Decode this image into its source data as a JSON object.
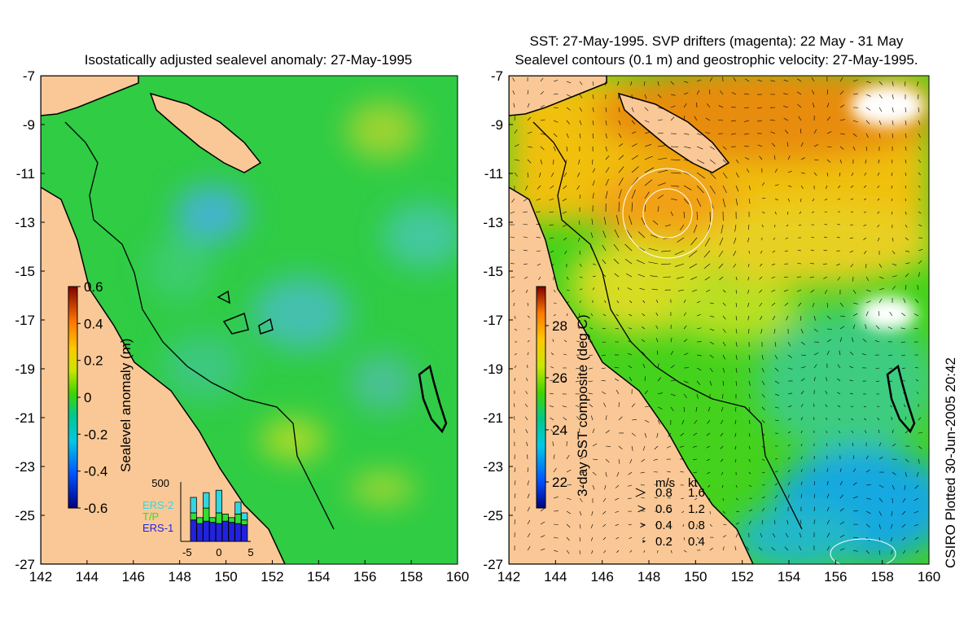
{
  "footer": "CSIRO Plotted 30-Jun-2005 20:42",
  "chart_data": [
    {
      "type": "heatmap",
      "title": "Isostatically adjusted sealevel anomaly: 27-May-1995",
      "x_ticks": [
        142,
        144,
        146,
        148,
        150,
        152,
        154,
        156,
        158,
        160
      ],
      "y_ticks": [
        -7,
        -9,
        -11,
        -13,
        -15,
        -17,
        -19,
        -21,
        -23,
        -25,
        -27
      ],
      "xlim": [
        142,
        160
      ],
      "ylim": [
        -27,
        -7
      ],
      "colorbar": {
        "label": "Sealevel anomaly (m)",
        "ticks": [
          "0.6",
          "0.4",
          "0.2",
          "0",
          "-0.2",
          "-0.4",
          "-0.6"
        ],
        "range": [
          -0.6,
          0.6
        ]
      },
      "inset": {
        "type": "bar",
        "y_tick": "500",
        "x_ticks": [
          "-5",
          "0",
          "5"
        ],
        "legend": [
          {
            "name": "ERS-2",
            "color": "#33d6e0"
          },
          {
            "name": "T/P",
            "color": "#33dd33"
          },
          {
            "name": "ERS-1",
            "color": "#2222dd"
          }
        ],
        "categories": [
          -4,
          -3,
          -2,
          -1,
          0,
          1,
          2,
          3,
          4
        ],
        "series": [
          {
            "name": "ERS-1",
            "values": [
              180,
              150,
              170,
              160,
              150,
              170,
              160,
              150,
              140
            ]
          },
          {
            "name": "T/P",
            "values": [
              60,
              50,
              110,
              40,
              90,
              60,
              40,
              80,
              40
            ]
          },
          {
            "name": "ERS-2",
            "values": [
              130,
              0,
              130,
              0,
              190,
              0,
              0,
              100,
              60
            ]
          }
        ]
      }
    },
    {
      "type": "heatmap",
      "title_line1": "SST: 27-May-1995. SVP drifters (magenta): 22 May - 31 May",
      "title_line2": "Sealevel contours (0.1 m) and geostrophic velocity: 27-May-1995.",
      "x_ticks": [
        142,
        144,
        146,
        148,
        150,
        152,
        154,
        156,
        158,
        160
      ],
      "y_ticks": [
        -7,
        -9,
        -11,
        -13,
        -15,
        -17,
        -19,
        -21,
        -23,
        -25,
        -27
      ],
      "xlim": [
        142,
        160
      ],
      "ylim": [
        -27,
        -7
      ],
      "colorbar": {
        "label": "3-day SST composite (deg C)",
        "ticks": [
          "28",
          "26",
          "24",
          "22"
        ],
        "range": [
          21,
          29.5
        ]
      },
      "velocity_key": {
        "header_ms": "m/s",
        "header_kt": "kt",
        "rows": [
          {
            "ms": "0.8",
            "kt": "1.6"
          },
          {
            "ms": "0.6",
            "kt": "1.2"
          },
          {
            "ms": "0.4",
            "kt": "0.8"
          },
          {
            "ms": "0.2",
            "kt": "0.4"
          }
        ]
      }
    }
  ]
}
